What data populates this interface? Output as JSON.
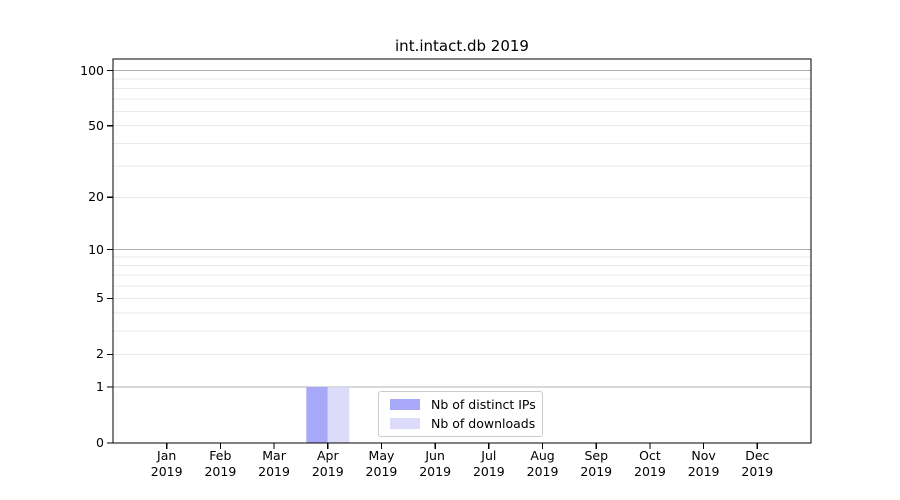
{
  "figure": {
    "background": "#ffffff"
  },
  "chart_data": {
    "type": "bar",
    "title": "int.intact.db 2019",
    "categories": [
      "Jan",
      "Feb",
      "Mar",
      "Apr",
      "May",
      "Jun",
      "Jul",
      "Aug",
      "Sep",
      "Oct",
      "Nov",
      "Dec"
    ],
    "category_year": "2019",
    "series": [
      {
        "name": "Nb of distinct IPs",
        "color": "#a8a8f8",
        "values": [
          0,
          0,
          0,
          1,
          0,
          0,
          0,
          0,
          0,
          0,
          0,
          0
        ]
      },
      {
        "name": "Nb of downloads",
        "color": "#dcdcfa",
        "values": [
          0,
          0,
          0,
          1,
          0,
          0,
          0,
          0,
          0,
          0,
          0,
          0
        ]
      }
    ],
    "xlabel": "",
    "ylabel": "",
    "yscale": "log1p",
    "ylim": [
      0,
      115
    ],
    "ytick_values": [
      0,
      1,
      2,
      5,
      10,
      20,
      50,
      100
    ],
    "y_major_gridlines": [
      1,
      10,
      100
    ],
    "y_minor_gridlines": [
      2,
      3,
      4,
      5,
      6,
      7,
      8,
      9,
      20,
      30,
      40,
      50,
      60,
      70,
      80,
      90
    ],
    "grid": true,
    "legend_position": "lower-center-inside"
  },
  "style": {
    "axis_color": "#000000",
    "major_grid_color": "#b0b0b0",
    "minor_grid_color": "#e9e9e9",
    "legend_border_color": "#cccccc",
    "text_color": "#000000"
  }
}
